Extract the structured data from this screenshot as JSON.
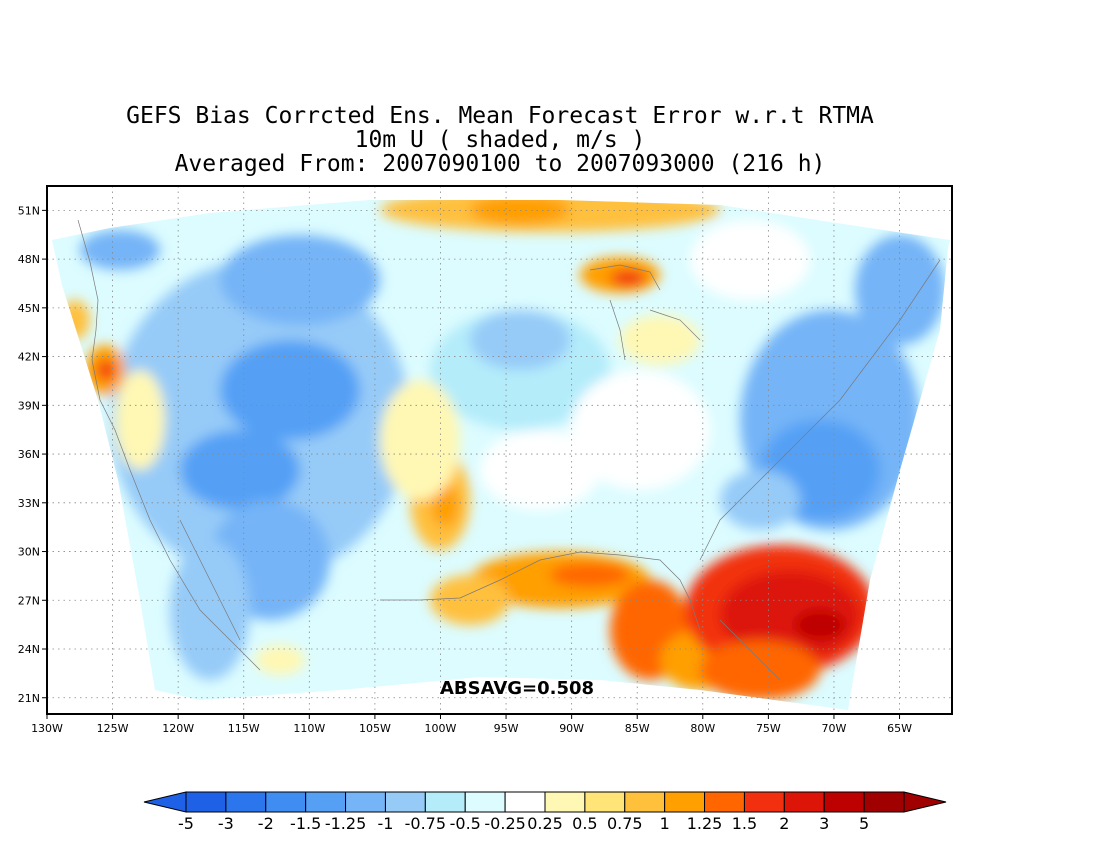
{
  "title": {
    "line1": "GEFS Bias Corrcted Ens. Mean Forecast Error w.r.t RTMA",
    "line2": "10m U ( shaded, m/s )",
    "line3": "Averaged From: 2007090100 to 2007093000 (216 h)"
  },
  "annotation": "ABSAVG=0.508",
  "map": {
    "lat_labels": [
      {
        "value": 51,
        "label": "51N"
      },
      {
        "value": 48,
        "label": "48N"
      },
      {
        "value": 45,
        "label": "45N"
      },
      {
        "value": 42,
        "label": "42N"
      },
      {
        "value": 39,
        "label": "39N"
      },
      {
        "value": 36,
        "label": "36N"
      },
      {
        "value": 33,
        "label": "33N"
      },
      {
        "value": 30,
        "label": "30N"
      },
      {
        "value": 27,
        "label": "27N"
      },
      {
        "value": 24,
        "label": "24N"
      },
      {
        "value": 21,
        "label": "21N"
      }
    ],
    "lon_labels": [
      {
        "value": -130,
        "label": "130W"
      },
      {
        "value": -125,
        "label": "125W"
      },
      {
        "value": -120,
        "label": "120W"
      },
      {
        "value": -115,
        "label": "115W"
      },
      {
        "value": -110,
        "label": "110W"
      },
      {
        "value": -105,
        "label": "105W"
      },
      {
        "value": -100,
        "label": "100W"
      },
      {
        "value": -95,
        "label": "95W"
      },
      {
        "value": -90,
        "label": "90W"
      },
      {
        "value": -85,
        "label": "85W"
      },
      {
        "value": -80,
        "label": "80W"
      },
      {
        "value": -75,
        "label": "75W"
      },
      {
        "value": -70,
        "label": "70W"
      },
      {
        "value": -65,
        "label": "65W"
      }
    ],
    "lon_range": [
      -130,
      -61
    ],
    "lat_range": [
      20,
      52.5
    ],
    "grid": true
  },
  "colorbar": {
    "labels": [
      "-5",
      "-3",
      "-2",
      "-1.5",
      "-1.25",
      "-1",
      "-0.75",
      "-0.5",
      "-0.25",
      "0.25",
      "0.5",
      "0.75",
      "1",
      "1.25",
      "1.5",
      "2",
      "3",
      "5"
    ],
    "colors": [
      "#1e61e6",
      "#2b76ed",
      "#3f8df3",
      "#55a0f5",
      "#74b4f7",
      "#96cbf8",
      "#b4ecfa",
      "#dcfcff",
      "#ffffff",
      "#fff8b4",
      "#ffe478",
      "#ffc03c",
      "#ff9f00",
      "#ff6600",
      "#f23010",
      "#dd1408",
      "#bd0000",
      "#a00000"
    ],
    "min_arrow_color": "#1e61e6",
    "max_arrow_color": "#a00000"
  },
  "regions": [
    {
      "name": "southeast-gulf-positive",
      "lon": -74,
      "lat": 26,
      "value": 2.5
    },
    {
      "name": "florida-strait-positive",
      "lon": -69,
      "lat": 25,
      "value": 3.2
    },
    {
      "name": "gulf-coast-positive",
      "lon": -88,
      "lat": 28,
      "value": 1.4
    },
    {
      "name": "texas-positive",
      "lon": -100,
      "lat": 33,
      "value": 1.0
    },
    {
      "name": "lake-superior-positive",
      "lon": -86,
      "lat": 47.5,
      "value": 1.6
    },
    {
      "name": "canada-north-positive",
      "lon": -92,
      "lat": 51,
      "value": 0.9
    },
    {
      "name": "california-positive",
      "lon": -124,
      "lat": 42,
      "value": 1.5
    },
    {
      "name": "atlantic-negative",
      "lon": -72,
      "lat": 37,
      "value": -1.3
    },
    {
      "name": "northeast-negative",
      "lon": -67,
      "lat": 45,
      "value": -1.0
    },
    {
      "name": "rockies-negative",
      "lon": -112,
      "lat": 38,
      "value": -1.3
    },
    {
      "name": "southwest-negative",
      "lon": -112,
      "lat": 30,
      "value": -1.1
    },
    {
      "name": "plains-negative",
      "lon": -95,
      "lat": 41,
      "value": -0.6
    }
  ]
}
